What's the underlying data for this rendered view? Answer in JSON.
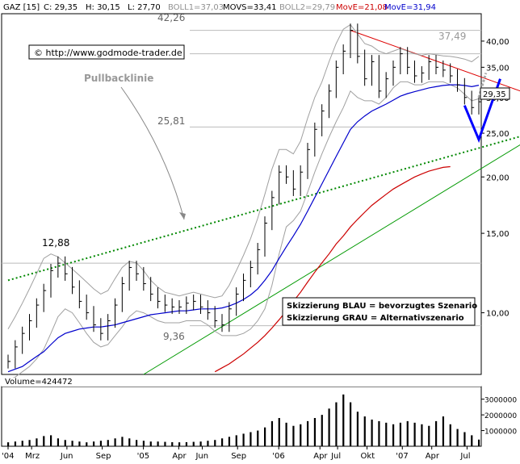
{
  "header": {
    "symbol": "GAZ [15]",
    "close": "C: 29,35",
    "high": "H: 30,15",
    "low": "L: 27,70",
    "boll1": "BOLL1=37,03",
    "movs": "MOVS=33,41",
    "boll2": "BOLL2=29,79",
    "move_red": "MovE=21,08",
    "move_blue": "MovE=31,94"
  },
  "copyright": "© http://www.godmode-trader.de",
  "annotations": {
    "pullback": "Pullbacklinie",
    "level_high": "42,26",
    "level_mid": "25,81",
    "level_low": "9,36",
    "level_1288": "12,88",
    "level_3749": "37,49",
    "current_price": "29,35",
    "scenario_blue": "Skizzierung BLAU = bevorzugtes Szenario",
    "scenario_grey": "Skizzierung GRAU = Alternativszenario"
  },
  "volume_label": "Volume=424472",
  "colors": {
    "price": "#000000",
    "bollinger": "#a0a0a0",
    "ema_blue": "#0000cc",
    "ema_red": "#cc0000",
    "trend_green": "#009900",
    "pullback_dotted": "#008800",
    "resistance_red": "#dd0000",
    "scenario_blue": "#0000ff",
    "scenario_grey": "#aaaaaa",
    "label_blue": "#0000cc",
    "label_red": "#cc0000"
  },
  "chart_data": [
    {
      "type": "line",
      "scale": "log",
      "ylim": [
        7.3,
        46
      ],
      "yticks": [
        10,
        15,
        20,
        25,
        30,
        35,
        40
      ],
      "ytick_labels": [
        "10,00",
        "15,00",
        "20,00",
        "25,00",
        "30,00",
        "35,00",
        "40,00"
      ],
      "x_labels": [
        "'04",
        "Mrz",
        "Jun",
        "Sep",
        "'05",
        "Apr",
        "Jun",
        "Sep",
        "'06",
        "Apr",
        "Jul",
        "Okt",
        "'07",
        "Apr",
        "Jul"
      ],
      "horizontal_levels": [
        42.26,
        37.49,
        25.81,
        12.88,
        9.36
      ],
      "series": [
        {
          "key": "price",
          "values": [
            7.8,
            8.4,
            9.0,
            9.6,
            10.4,
            11.2,
            12.4,
            12.88,
            12.2,
            11.4,
            10.6,
            10.0,
            9.4,
            9.0,
            9.6,
            10.4,
            11.6,
            12.6,
            12.2,
            11.6,
            11.0,
            10.6,
            10.4,
            10.3,
            10.3,
            10.5,
            10.6,
            10.3,
            10.0,
            9.6,
            9.4,
            10.2,
            11.0,
            11.8,
            12.6,
            13.8,
            15.8,
            18.0,
            20.5,
            20.0,
            18.8,
            20.5,
            23.0,
            25.5,
            28.0,
            31.0,
            35.0,
            38.0,
            42.26,
            37.0,
            33.0,
            36.0,
            31.0,
            33.0,
            35.0,
            37.5,
            35.0,
            33.5,
            34.0,
            36.0,
            35.0,
            34.5,
            33.5,
            32.0,
            30.0,
            28.5,
            29.35
          ]
        },
        {
          "key": "bollinger_upper",
          "values": [
            9.2,
            9.8,
            10.5,
            11.3,
            12.2,
            13.2,
            13.5,
            13.3,
            12.9,
            12.5,
            12.1,
            11.7,
            11.3,
            11.0,
            11.2,
            11.9,
            12.6,
            13.0,
            12.9,
            12.4,
            11.8,
            11.4,
            11.1,
            11.0,
            10.9,
            11.0,
            11.1,
            11.0,
            10.9,
            10.8,
            10.9,
            11.5,
            12.4,
            13.4,
            14.6,
            16.2,
            18.3,
            20.8,
            23.0,
            23.0,
            22.5,
            24.0,
            27.0,
            30.0,
            32.5,
            36.0,
            39.5,
            42.5,
            43.5,
            41.5,
            39.5,
            39.0,
            38.0,
            37.5,
            38.0,
            38.5,
            38.0,
            37.5,
            37.2,
            37.5,
            37.3,
            37.1,
            37.0,
            36.8,
            36.5,
            36.0,
            37.0
          ]
        },
        {
          "key": "bollinger_lower",
          "values": [
            7.1,
            7.2,
            7.4,
            7.6,
            7.9,
            8.3,
            9.0,
            9.8,
            10.2,
            10.0,
            9.5,
            9.0,
            8.6,
            8.4,
            8.5,
            8.9,
            9.3,
            9.8,
            10.1,
            10.0,
            9.8,
            9.6,
            9.5,
            9.5,
            9.5,
            9.6,
            9.6,
            9.6,
            9.4,
            9.1,
            8.9,
            8.9,
            8.9,
            9.0,
            9.2,
            9.6,
            10.2,
            11.5,
            13.5,
            15.5,
            16.0,
            16.8,
            18.5,
            20.5,
            22.5,
            24.5,
            26.5,
            28.5,
            31.0,
            30.0,
            29.5,
            29.5,
            29.0,
            30.0,
            31.5,
            32.5,
            32.5,
            32.0,
            32.0,
            32.5,
            32.5,
            32.5,
            32.0,
            31.5,
            30.5,
            29.5,
            29.8
          ]
        },
        {
          "key": "ema_blue",
          "values": [
            7.4,
            7.5,
            7.6,
            7.8,
            8.0,
            8.2,
            8.5,
            8.8,
            9.0,
            9.1,
            9.2,
            9.25,
            9.3,
            9.3,
            9.35,
            9.4,
            9.5,
            9.6,
            9.7,
            9.8,
            9.9,
            9.95,
            10.0,
            10.05,
            10.1,
            10.1,
            10.15,
            10.2,
            10.2,
            10.2,
            10.25,
            10.35,
            10.5,
            10.7,
            10.95,
            11.3,
            11.8,
            12.4,
            13.2,
            14.0,
            14.8,
            15.7,
            16.8,
            18.0,
            19.3,
            20.7,
            22.2,
            23.8,
            25.5,
            26.5,
            27.3,
            28.0,
            28.5,
            29.0,
            29.6,
            30.2,
            30.6,
            30.9,
            31.2,
            31.5,
            31.7,
            31.9,
            32.0,
            32.0,
            31.9,
            31.7,
            31.94
          ]
        },
        {
          "key": "ema_red",
          "values": [
            null,
            null,
            null,
            null,
            null,
            null,
            null,
            null,
            null,
            null,
            null,
            null,
            null,
            null,
            null,
            null,
            null,
            null,
            null,
            null,
            null,
            null,
            null,
            null,
            null,
            null,
            null,
            null,
            null,
            7.4,
            7.55,
            7.7,
            7.9,
            8.1,
            8.35,
            8.6,
            8.9,
            9.25,
            9.65,
            10.1,
            10.6,
            11.1,
            11.7,
            12.3,
            12.9,
            13.5,
            14.2,
            14.8,
            15.5,
            16.1,
            16.7,
            17.3,
            17.8,
            18.3,
            18.8,
            19.2,
            19.6,
            20.0,
            20.3,
            20.6,
            20.8,
            21.0,
            21.08
          ]
        }
      ],
      "trendlines": [
        {
          "key": "resistance",
          "from": [
            48,
            42.26
          ],
          "to": [
            73,
            30.0
          ]
        },
        {
          "key": "green_trend",
          "from": [
            19,
            7.3
          ],
          "to": [
            74,
            25.5
          ]
        },
        {
          "key": "pullback",
          "from": [
            0,
            11.8
          ],
          "to": [
            74,
            25.5
          ]
        }
      ],
      "scenario_blue": [
        [
          64,
          28.8
        ],
        [
          66,
          24.2
        ],
        [
          69,
          33.0
        ]
      ],
      "scenario_grey": [
        [
          66,
          30.0
        ],
        [
          67,
          34.0
        ]
      ]
    },
    {
      "type": "bar",
      "ylim": [
        0,
        3600000
      ],
      "yticks": [
        1000000,
        2000000,
        3000000
      ],
      "ytick_labels": [
        "1000000",
        "2000000",
        "3000000"
      ],
      "values": [
        250000,
        300000,
        350000,
        400000,
        500000,
        650000,
        700000,
        500000,
        400000,
        350000,
        300000,
        250000,
        300000,
        350000,
        400000,
        500000,
        600000,
        500000,
        400000,
        350000,
        300000,
        300000,
        280000,
        260000,
        250000,
        260000,
        280000,
        300000,
        350000,
        400000,
        500000,
        600000,
        700000,
        800000,
        900000,
        1000000,
        1200000,
        1600000,
        1800000,
        1500000,
        1300000,
        1400000,
        1600000,
        1800000,
        2000000,
        2400000,
        2800000,
        3300000,
        2800000,
        2200000,
        1900000,
        1700000,
        1600000,
        1500000,
        1400000,
        1500000,
        1600000,
        1500000,
        1400000,
        1300000,
        1600000,
        1900000,
        1400000,
        1100000,
        900000,
        700000,
        424472
      ]
    }
  ]
}
